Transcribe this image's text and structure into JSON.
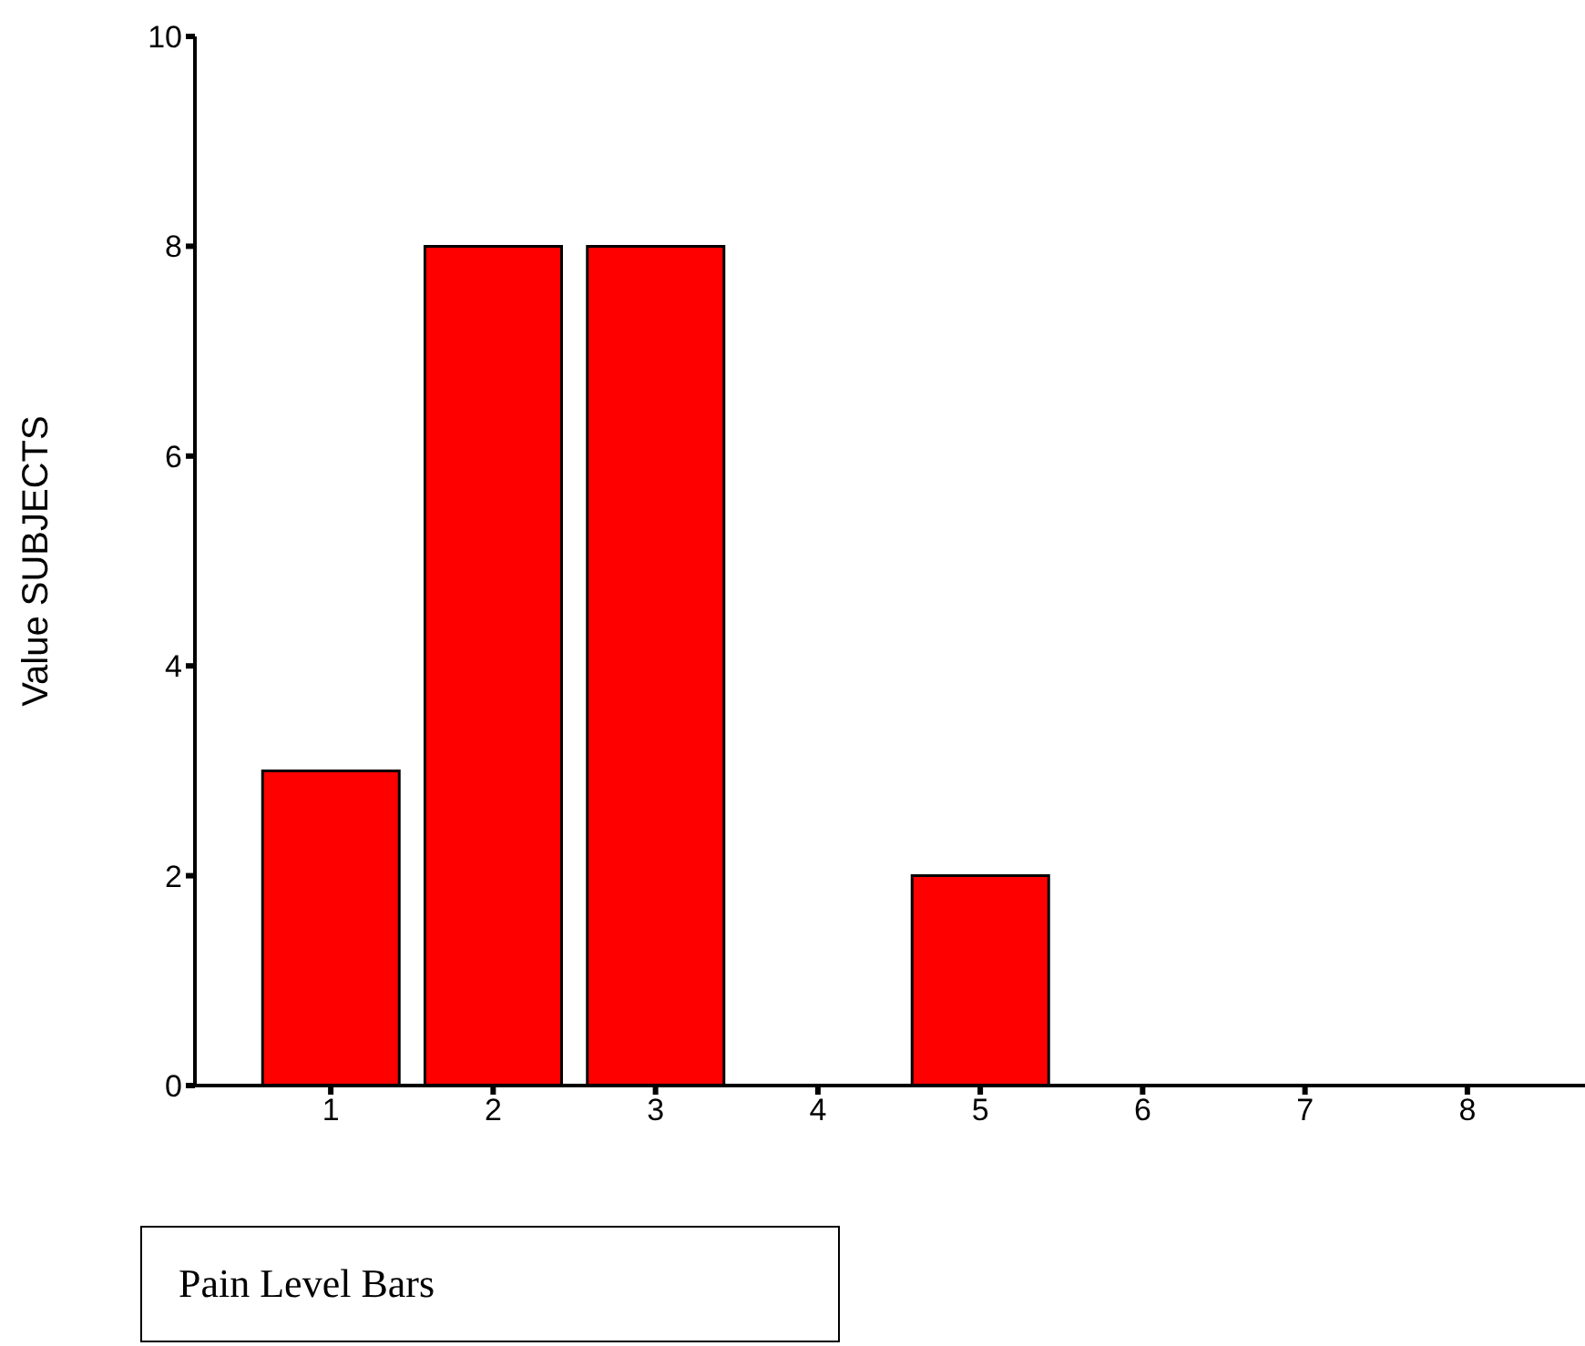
{
  "chart_data": {
    "type": "bar",
    "xlabel": "Pain Level Bars",
    "ylabel": "Value SUBJECTS",
    "categories": [
      "1",
      "2",
      "3",
      "4",
      "5",
      "6",
      "7",
      "8"
    ],
    "values": [
      3,
      8,
      8,
      0,
      2,
      0,
      0,
      0
    ],
    "color": "#ff0000",
    "ylim": [
      0,
      10
    ],
    "yticks": [
      0,
      2,
      4,
      6,
      8,
      10
    ],
    "grid": false,
    "legend": false
  }
}
